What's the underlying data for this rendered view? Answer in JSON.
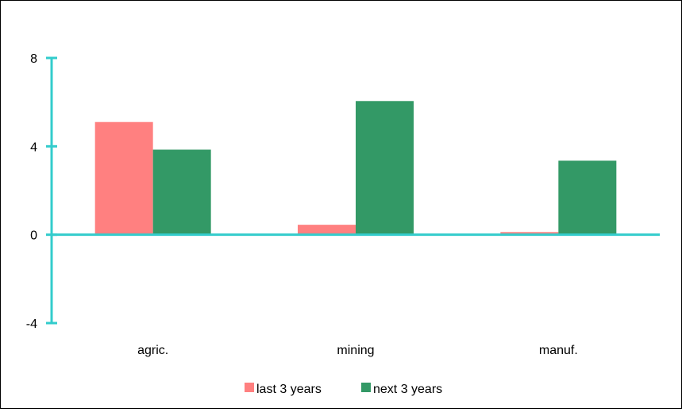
{
  "chart_data": {
    "type": "bar",
    "categories": [
      "agric.",
      "mining",
      "manuf."
    ],
    "series": [
      {
        "name": "last 3 years",
        "values": [
          5.1,
          0.45,
          0.12
        ],
        "color": "#ff8080"
      },
      {
        "name": "next 3 years",
        "values": [
          3.85,
          6.05,
          3.35
        ],
        "color": "#339966"
      }
    ],
    "ylim": [
      -4,
      8
    ],
    "yticks": [
      -4,
      0,
      4,
      8
    ],
    "axis_color": "#33cccc",
    "grid": false,
    "legend_position": "bottom"
  }
}
